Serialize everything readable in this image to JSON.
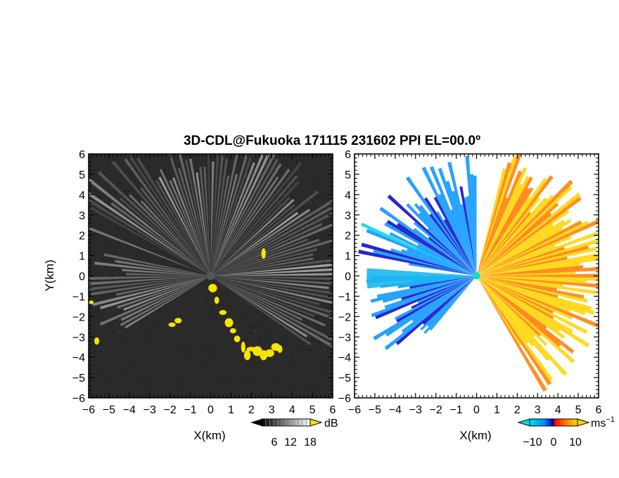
{
  "title": "3D-CDL@Fukuoka 171115 231602 PPI EL=00.0º",
  "chart_data": [
    {
      "type": "heatmap",
      "panel": "reflectivity",
      "xlabel": "X(km)",
      "ylabel": "Y(km)",
      "xlim": [
        -6,
        6
      ],
      "ylim": [
        -6,
        6
      ],
      "xticks": [
        "−6",
        "−5",
        "−4",
        "−3",
        "−2",
        "−1",
        "0",
        "1",
        "2",
        "3",
        "4",
        "5",
        "6"
      ],
      "yticks": [
        "6",
        "5",
        "4",
        "3",
        "2",
        "1",
        "0",
        "−1",
        "−2",
        "−3",
        "−4",
        "−5",
        "−6"
      ],
      "colorbar": {
        "unit": "dB",
        "ticks": [
          "6",
          "12",
          "18"
        ],
        "range": [
          0,
          24
        ],
        "colors": [
          "#000000",
          "#ffffff"
        ],
        "over_color": "#f5e400"
      },
      "beam_sectors_deg": {
        "start": 120,
        "end": 325
      },
      "highlight_color": "#f5e400",
      "background_color": "#2a2a2a",
      "grid": false
    },
    {
      "type": "heatmap",
      "panel": "doppler-velocity",
      "xlabel": "X(km)",
      "xlim": [
        -6,
        6
      ],
      "ylim": [
        -6,
        6
      ],
      "xticks": [
        "−6",
        "−5",
        "−4",
        "−3",
        "−2",
        "−1",
        "0",
        "1",
        "2",
        "3",
        "4",
        "5",
        "6"
      ],
      "yticks": [
        "6",
        "5",
        "4",
        "3",
        "2",
        "1",
        "0",
        "−1",
        "−2",
        "−3",
        "−4",
        "−5",
        "−6"
      ],
      "colorbar": {
        "unit": "ms",
        "unit_exp": "−1",
        "ticks": [
          "−10",
          "0",
          "10"
        ],
        "range": [
          -15,
          15
        ],
        "colors": [
          "#00d8e8",
          "#0060ff",
          "#0000c8",
          "#ff0000",
          "#ff6a00",
          "#ffd400"
        ]
      },
      "velocity_range": [
        -15,
        15
      ],
      "background_color": "#ffffff",
      "grid": false
    }
  ]
}
